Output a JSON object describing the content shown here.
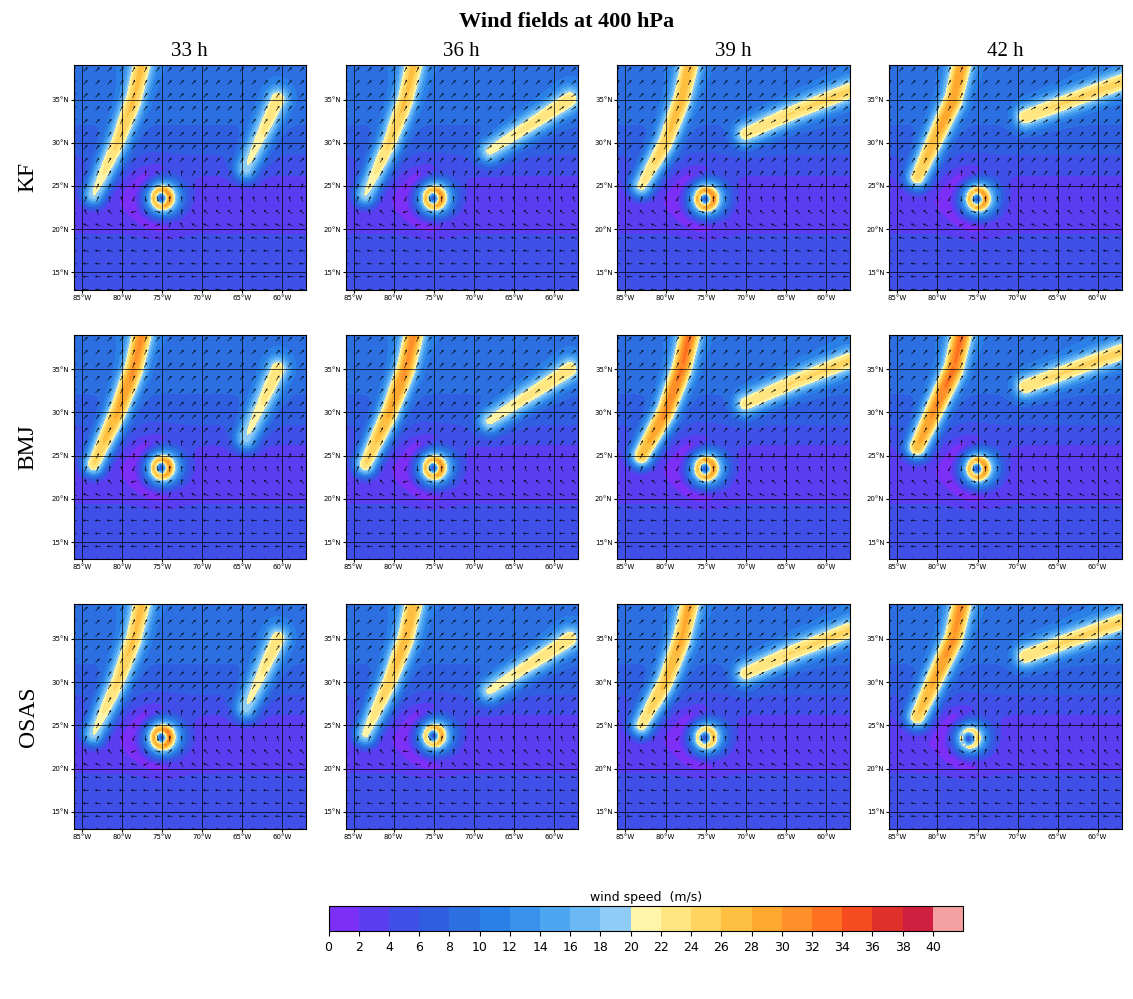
{
  "chart_data": {
    "type": "map",
    "title": "Wind fields at 400 hPa",
    "columns": [
      "33 h",
      "36 h",
      "39 h",
      "42 h"
    ],
    "rows": [
      "KF",
      "BMJ",
      "OSAS"
    ],
    "xlim": [
      -86,
      -57
    ],
    "ylim": [
      13,
      39
    ],
    "xticks": [
      {
        "value": -85,
        "label": "85°W"
      },
      {
        "value": -80,
        "label": "80°W"
      },
      {
        "value": -75,
        "label": "75°W"
      },
      {
        "value": -70,
        "label": "70°W"
      },
      {
        "value": -65,
        "label": "65°W"
      },
      {
        "value": -60,
        "label": "60°W"
      }
    ],
    "yticks": [
      {
        "value": 15,
        "label": "15°N"
      },
      {
        "value": 20,
        "label": "20°N"
      },
      {
        "value": 25,
        "label": "25°N"
      },
      {
        "value": 30,
        "label": "30°N"
      },
      {
        "value": 35,
        "label": "35°N"
      }
    ],
    "grid": true,
    "colorbar": {
      "label": "wind speed  (m/s)",
      "range": [
        0,
        42
      ],
      "ticks": [
        0,
        2,
        4,
        6,
        8,
        10,
        12,
        14,
        16,
        18,
        20,
        22,
        24,
        26,
        28,
        30,
        32,
        34,
        36,
        38,
        40
      ],
      "colors": [
        "#7b2ff7",
        "#5a3df0",
        "#3f4fe8",
        "#2f5fe0",
        "#2b6fe0",
        "#2a80e6",
        "#3a92ec",
        "#4fa6f0",
        "#6ab9f4",
        "#8fcdf6",
        "#fff5a8",
        "#ffe680",
        "#ffd45f",
        "#ffbf40",
        "#ffa830",
        "#ff8f28",
        "#ff7020",
        "#f44c20",
        "#e0302c",
        "#d02040",
        "#f4a0a0"
      ]
    },
    "background_flow": {
      "lat": [
        13,
        18,
        23,
        28,
        33,
        39
      ],
      "u": [
        -6,
        -5,
        -1,
        4,
        6,
        7
      ],
      "v": [
        0,
        0.5,
        2,
        4,
        6,
        7
      ]
    },
    "panels": [
      [
        {
          "vortex": {
            "center": [
              -75.0,
              23.6
            ],
            "vmax": 30,
            "radius": 1.0
          },
          "jets": [
            {
              "path": [
                [
                  -83.5,
                  24
                ],
                [
                  -80.5,
                  30
                ],
                [
                  -78.5,
                  35
                ],
                [
                  -77.5,
                  39
                ]
              ],
              "speed": 18
            },
            {
              "path": [
                [
                  -64.5,
                  27
                ],
                [
                  -62.5,
                  31
                ],
                [
                  -60.5,
                  35
                ]
              ],
              "speed": 15
            }
          ]
        },
        {
          "vortex": {
            "center": [
              -75.0,
              23.6
            ],
            "vmax": 30,
            "radius": 1.0
          },
          "jets": [
            {
              "path": [
                [
                  -83.5,
                  24
                ],
                [
                  -80.5,
                  30
                ],
                [
                  -78.5,
                  35
                ],
                [
                  -77.5,
                  39
                ]
              ],
              "speed": 18
            },
            {
              "path": [
                [
                  -68,
                  29
                ],
                [
                  -63,
                  32
                ],
                [
                  -58,
                  35
                ]
              ],
              "speed": 15
            }
          ]
        },
        {
          "vortex": {
            "center": [
              -75.0,
              23.5
            ],
            "vmax": 31,
            "radius": 1.0
          },
          "jets": [
            {
              "path": [
                [
                  -83,
                  25
                ],
                [
                  -80,
                  30
                ],
                [
                  -78,
                  35
                ],
                [
                  -77,
                  39
                ]
              ],
              "speed": 19
            },
            {
              "path": [
                [
                  -70,
                  31
                ],
                [
                  -64,
                  33.5
                ],
                [
                  -57,
                  36
                ]
              ],
              "speed": 16
            }
          ]
        },
        {
          "vortex": {
            "center": [
              -75.0,
              23.5
            ],
            "vmax": 30,
            "radius": 1.0
          },
          "jets": [
            {
              "path": [
                [
                  -82.5,
                  26
                ],
                [
                  -80,
                  31
                ],
                [
                  -78,
                  35
                ],
                [
                  -77,
                  39
                ]
              ],
              "speed": 21
            },
            {
              "path": [
                [
                  -69,
                  33
                ],
                [
                  -63,
                  35
                ],
                [
                  -57,
                  37
                ]
              ],
              "speed": 16
            }
          ]
        }
      ],
      [
        {
          "vortex": {
            "center": [
              -75.0,
              23.6
            ],
            "vmax": 30,
            "radius": 1.0
          },
          "jets": [
            {
              "path": [
                [
                  -83.5,
                  24
                ],
                [
                  -80.5,
                  30
                ],
                [
                  -78.5,
                  35
                ],
                [
                  -77.5,
                  39
                ]
              ],
              "speed": 22
            },
            {
              "path": [
                [
                  -64.5,
                  27
                ],
                [
                  -62.5,
                  31
                ],
                [
                  -60.5,
                  35
                ]
              ],
              "speed": 15
            }
          ]
        },
        {
          "vortex": {
            "center": [
              -75.0,
              23.6
            ],
            "vmax": 30,
            "radius": 1.0
          },
          "jets": [
            {
              "path": [
                [
                  -83.5,
                  24
                ],
                [
                  -80.5,
                  30
                ],
                [
                  -78.5,
                  35
                ],
                [
                  -77.5,
                  39
                ]
              ],
              "speed": 22
            },
            {
              "path": [
                [
                  -68,
                  29
                ],
                [
                  -63,
                  32
                ],
                [
                  -58,
                  35
                ]
              ],
              "speed": 15
            }
          ]
        },
        {
          "vortex": {
            "center": [
              -75.0,
              23.5
            ],
            "vmax": 30,
            "radius": 1.0
          },
          "jets": [
            {
              "path": [
                [
                  -83,
                  25
                ],
                [
                  -80,
                  30
                ],
                [
                  -78,
                  35
                ],
                [
                  -77,
                  39
                ]
              ],
              "speed": 24
            },
            {
              "path": [
                [
                  -70,
                  31
                ],
                [
                  -64,
                  33.5
                ],
                [
                  -57,
                  36
                ]
              ],
              "speed": 16
            }
          ]
        },
        {
          "vortex": {
            "center": [
              -75.0,
              23.5
            ],
            "vmax": 30,
            "radius": 1.0
          },
          "jets": [
            {
              "path": [
                [
                  -82.5,
                  26
                ],
                [
                  -80,
                  31
                ],
                [
                  -78,
                  35
                ],
                [
                  -77,
                  39
                ]
              ],
              "speed": 24
            },
            {
              "path": [
                [
                  -69,
                  33
                ],
                [
                  -63,
                  35
                ],
                [
                  -57,
                  37
                ]
              ],
              "speed": 16
            }
          ]
        }
      ],
      [
        {
          "vortex": {
            "center": [
              -75.0,
              23.6
            ],
            "vmax": 32,
            "radius": 1.0
          },
          "jets": [
            {
              "path": [
                [
                  -83.5,
                  24
                ],
                [
                  -80.5,
                  30
                ],
                [
                  -78.5,
                  35
                ],
                [
                  -77.5,
                  39
                ]
              ],
              "speed": 18
            },
            {
              "path": [
                [
                  -64.5,
                  27
                ],
                [
                  -62.5,
                  31
                ],
                [
                  -60.5,
                  35
                ]
              ],
              "speed": 15
            }
          ]
        },
        {
          "vortex": {
            "center": [
              -75.0,
              23.8
            ],
            "vmax": 28,
            "radius": 1.0
          },
          "jets": [
            {
              "path": [
                [
                  -83.5,
                  24
                ],
                [
                  -80.5,
                  30
                ],
                [
                  -78.5,
                  35
                ],
                [
                  -77.5,
                  39
                ]
              ],
              "speed": 19
            },
            {
              "path": [
                [
                  -68,
                  29
                ],
                [
                  -63,
                  32
                ],
                [
                  -58,
                  35
                ]
              ],
              "speed": 15
            }
          ]
        },
        {
          "vortex": {
            "center": [
              -75.0,
              23.6
            ],
            "vmax": 26,
            "radius": 1.0
          },
          "jets": [
            {
              "path": [
                [
                  -83,
                  25
                ],
                [
                  -80,
                  30
                ],
                [
                  -78,
                  35
                ],
                [
                  -77,
                  39
                ]
              ],
              "speed": 20
            },
            {
              "path": [
                [
                  -70,
                  31
                ],
                [
                  -64,
                  33.5
                ],
                [
                  -57,
                  36
                ]
              ],
              "speed": 16
            }
          ]
        },
        {
          "vortex": {
            "center": [
              -76.0,
              23.5
            ],
            "vmax": 24,
            "radius": 1.0
          },
          "jets": [
            {
              "path": [
                [
                  -82.5,
                  26
                ],
                [
                  -80,
                  31
                ],
                [
                  -78,
                  35
                ],
                [
                  -77,
                  39
                ]
              ],
              "speed": 22
            },
            {
              "path": [
                [
                  -69,
                  33
                ],
                [
                  -63,
                  35
                ],
                [
                  -57,
                  37
                ]
              ],
              "speed": 16
            }
          ]
        }
      ]
    ]
  }
}
